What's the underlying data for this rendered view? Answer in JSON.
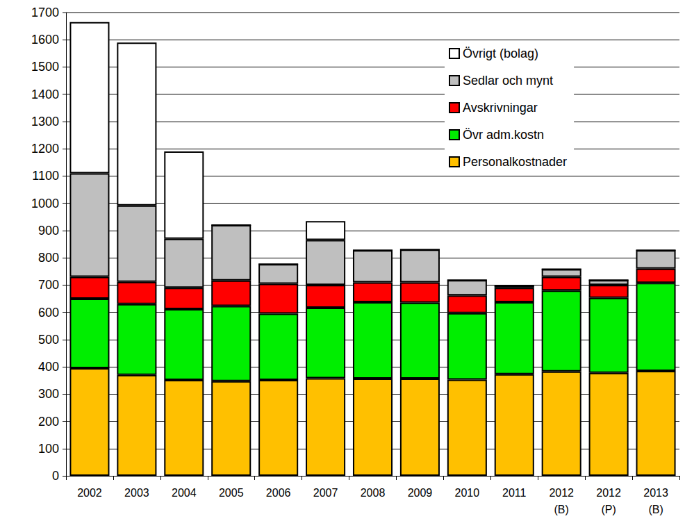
{
  "chart_data": {
    "type": "bar",
    "stacked": true,
    "grid": true,
    "legend": "upper right",
    "categories": [
      "2002",
      "2003",
      "2004",
      "2005",
      "2006",
      "2007",
      "2008",
      "2009",
      "2010",
      "2011",
      "2012\n(B)",
      "2012\n(P)",
      "2013\n(B)"
    ],
    "ylim": [
      0,
      1700
    ],
    "yticks": [
      0,
      100,
      200,
      300,
      400,
      500,
      600,
      700,
      800,
      900,
      1000,
      1100,
      1200,
      1300,
      1400,
      1500,
      1600,
      1700
    ],
    "series": [
      {
        "name": "Personalkostnader",
        "color": "#ffc000",
        "values": [
          395,
          370,
          352,
          347,
          352,
          358,
          357,
          357,
          353,
          373,
          383,
          378,
          385
        ]
      },
      {
        "name": "Övr adm.kostn",
        "color": "#00ee00",
        "values": [
          255,
          260,
          260,
          276,
          243,
          259,
          280,
          278,
          244,
          264,
          297,
          275,
          323
        ]
      },
      {
        "name": "Avskrivningar",
        "color": "#ff0000",
        "values": [
          80,
          82,
          78,
          94,
          110,
          83,
          73,
          75,
          65,
          53,
          50,
          47,
          52
        ]
      },
      {
        "name": "Sedlar och mynt",
        "color": "#bfbfbf",
        "values": [
          380,
          280,
          180,
          203,
          72,
          165,
          118,
          120,
          56,
          7,
          28,
          18,
          68
        ]
      },
      {
        "name": "Övrigt (bolag)",
        "color": "#ffffff",
        "values": [
          555,
          598,
          320,
          0,
          0,
          70,
          0,
          0,
          0,
          0,
          0,
          0,
          0
        ]
      }
    ]
  }
}
